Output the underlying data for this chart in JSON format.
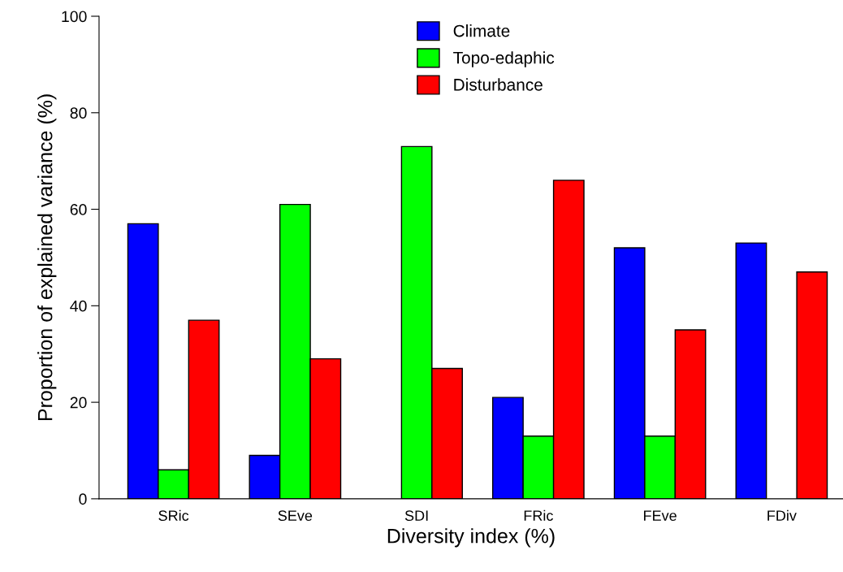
{
  "chart_data": {
    "type": "bar",
    "xlabel": "Diversity index (%)",
    "ylabel": "Proportion of explained variance (%)",
    "categories": [
      "SRic",
      "SEve",
      "SDI",
      "FRic",
      "FEve",
      "FDiv"
    ],
    "series": [
      {
        "name": "Climate",
        "color": "#0000ff",
        "values": [
          57,
          9,
          null,
          21,
          52,
          53
        ]
      },
      {
        "name": "Topo-edaphic",
        "color": "#00ff00",
        "values": [
          6,
          61,
          73,
          13,
          13,
          null
        ]
      },
      {
        "name": "Disturbance",
        "color": "#ff0000",
        "values": [
          37,
          29,
          27,
          66,
          35,
          47
        ]
      }
    ],
    "ylim": [
      0,
      100
    ],
    "yticks": [
      0,
      20,
      40,
      60,
      80,
      100
    ],
    "grid": false,
    "legend": "top"
  }
}
